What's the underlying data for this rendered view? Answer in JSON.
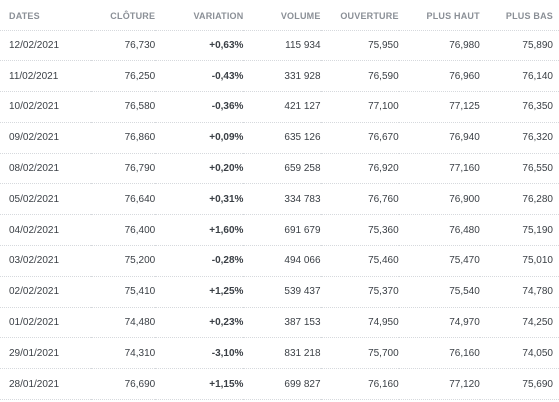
{
  "headers": {
    "date": "DATES",
    "close": "CLÔTURE",
    "variation": "VARIATION",
    "volume": "VOLUME",
    "open": "OUVERTURE",
    "high": "PLUS HAUT",
    "low": "PLUS BAS"
  },
  "colors": {
    "positive": "#2fa94e",
    "negative": "#e0353c",
    "header": "#8a8f96"
  },
  "rows": [
    {
      "date": "12/02/2021",
      "close": "76,730",
      "variation": "+0,63%",
      "direction": "up",
      "volume": "115 934",
      "open": "75,950",
      "high": "76,980",
      "low": "75,890"
    },
    {
      "date": "11/02/2021",
      "close": "76,250",
      "variation": "-0,43%",
      "direction": "down",
      "volume": "331 928",
      "open": "76,590",
      "high": "76,960",
      "low": "76,140"
    },
    {
      "date": "10/02/2021",
      "close": "76,580",
      "variation": "-0,36%",
      "direction": "down",
      "volume": "421 127",
      "open": "77,100",
      "high": "77,125",
      "low": "76,350"
    },
    {
      "date": "09/02/2021",
      "close": "76,860",
      "variation": "+0,09%",
      "direction": "up",
      "volume": "635 126",
      "open": "76,670",
      "high": "76,940",
      "low": "76,320"
    },
    {
      "date": "08/02/2021",
      "close": "76,790",
      "variation": "+0,20%",
      "direction": "up",
      "volume": "659 258",
      "open": "76,920",
      "high": "77,160",
      "low": "76,550"
    },
    {
      "date": "05/02/2021",
      "close": "76,640",
      "variation": "+0,31%",
      "direction": "up",
      "volume": "334 783",
      "open": "76,760",
      "high": "76,900",
      "low": "76,280"
    },
    {
      "date": "04/02/2021",
      "close": "76,400",
      "variation": "+1,60%",
      "direction": "up",
      "volume": "691 679",
      "open": "75,360",
      "high": "76,480",
      "low": "75,190"
    },
    {
      "date": "03/02/2021",
      "close": "75,200",
      "variation": "-0,28%",
      "direction": "down",
      "volume": "494 066",
      "open": "75,460",
      "high": "75,470",
      "low": "75,010"
    },
    {
      "date": "02/02/2021",
      "close": "75,410",
      "variation": "+1,25%",
      "direction": "up",
      "volume": "539 437",
      "open": "75,370",
      "high": "75,540",
      "low": "74,780"
    },
    {
      "date": "01/02/2021",
      "close": "74,480",
      "variation": "+0,23%",
      "direction": "up",
      "volume": "387 153",
      "open": "74,950",
      "high": "74,970",
      "low": "74,250"
    },
    {
      "date": "29/01/2021",
      "close": "74,310",
      "variation": "-3,10%",
      "direction": "down",
      "volume": "831 218",
      "open": "75,700",
      "high": "76,160",
      "low": "74,050"
    },
    {
      "date": "28/01/2021",
      "close": "76,690",
      "variation": "+1,15%",
      "direction": "up",
      "volume": "699 827",
      "open": "76,160",
      "high": "77,120",
      "low": "75,690"
    }
  ]
}
